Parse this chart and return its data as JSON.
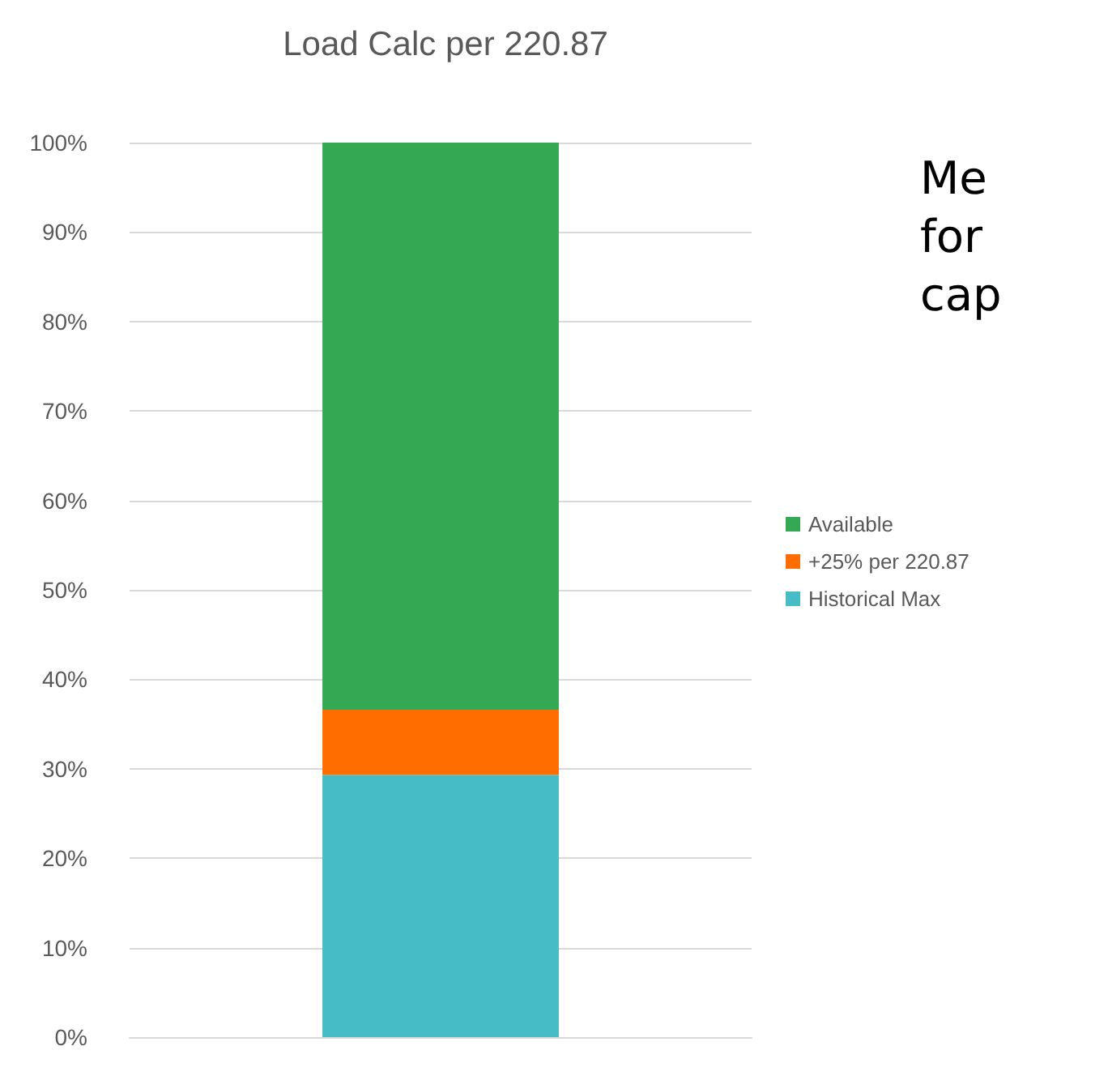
{
  "chart_data": {
    "type": "bar",
    "title": "Load Calc per 220.87",
    "categories": [
      null
    ],
    "stacked": true,
    "series": [
      {
        "name": "Historical Max",
        "color": "#46bdc6",
        "values": [
          29.3
        ]
      },
      {
        "name": "+25% per 220.87",
        "color": "#ff6d00",
        "values": [
          7.3
        ]
      },
      {
        "name": "Available",
        "color": "#34a853",
        "values": [
          63.4
        ]
      }
    ],
    "ylim": [
      0,
      100
    ],
    "yticks": [
      {
        "value": 0,
        "label": "0%"
      },
      {
        "value": 10,
        "label": "10%"
      },
      {
        "value": 20,
        "label": "20%"
      },
      {
        "value": 30,
        "label": "30%"
      },
      {
        "value": 40,
        "label": "40%"
      },
      {
        "value": 50,
        "label": "50%"
      },
      {
        "value": 60,
        "label": "60%"
      },
      {
        "value": 70,
        "label": "70%"
      },
      {
        "value": 80,
        "label": "80%"
      },
      {
        "value": 90,
        "label": "90%"
      },
      {
        "value": 100,
        "label": "100%"
      }
    ],
    "grid": "y",
    "legend": "right",
    "annotations": [
      "Me\nfor\ncap"
    ]
  }
}
